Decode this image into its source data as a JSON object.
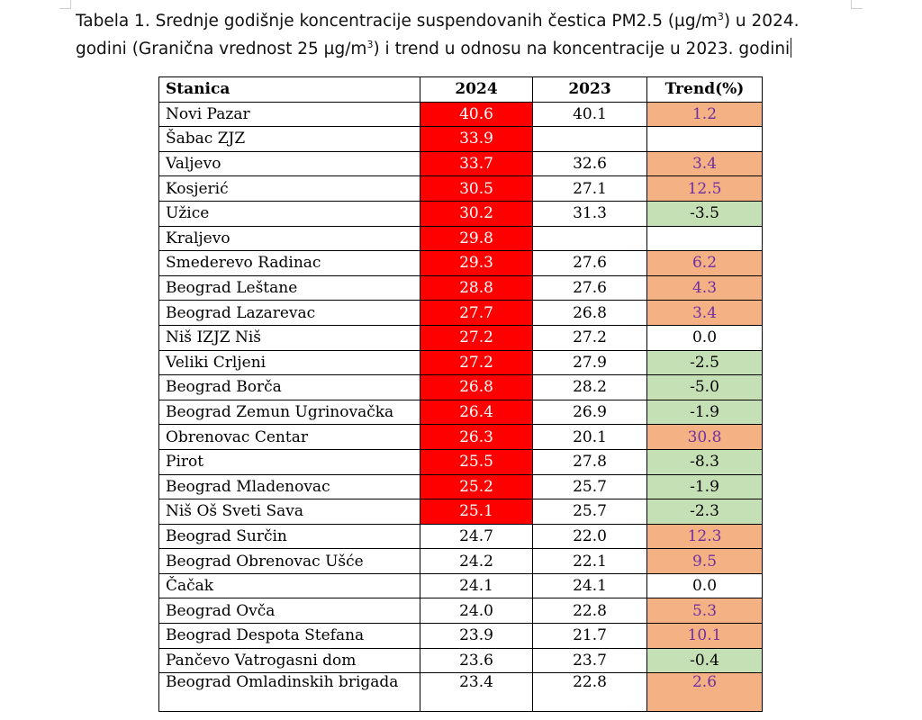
{
  "caption": {
    "line1_a": "Tabela 1. Srednje godišnje koncentracije suspendovanih čestica PM2.5 (µg/m",
    "line1_sup": "3",
    "line1_b": ") u 2024.",
    "line2_a": "godini (Granična vrednost 25 µg/m",
    "line2_sup": "3",
    "line2_b": ") i trend u odnosu na koncentracije u 2023. godini"
  },
  "table": {
    "headers": [
      "Stanica",
      "2024",
      "2023",
      "Trend(%)"
    ],
    "limit_value": 25,
    "colors": {
      "exceed_bg": "#ff0000",
      "exceed_text": "#ffffff",
      "trend_up_bg": "#f4b183",
      "trend_up_text": "#7030a0",
      "trend_down_bg": "#c5e0b4"
    },
    "rows": [
      {
        "station": "Novi Pazar",
        "v2024": "40.6",
        "v2023": "40.1",
        "trend": "1.2"
      },
      {
        "station": "Šabac ZJZ",
        "v2024": "33.9",
        "v2023": "",
        "trend": ""
      },
      {
        "station": "Valjevo",
        "v2024": "33.7",
        "v2023": "32.6",
        "trend": "3.4"
      },
      {
        "station": "Kosjerić",
        "v2024": "30.5",
        "v2023": "27.1",
        "trend": "12.5"
      },
      {
        "station": "Užice",
        "v2024": "30.2",
        "v2023": "31.3",
        "trend": "-3.5"
      },
      {
        "station": "Kraljevo",
        "v2024": "29.8",
        "v2023": "",
        "trend": ""
      },
      {
        "station": "Smederevo Radinac",
        "v2024": "29.3",
        "v2023": "27.6",
        "trend": "6.2"
      },
      {
        "station": "Beograd Leštane",
        "v2024": "28.8",
        "v2023": "27.6",
        "trend": "4.3"
      },
      {
        "station": "Beograd Lazarevac",
        "v2024": "27.7",
        "v2023": "26.8",
        "trend": "3.4"
      },
      {
        "station": "Niš IZJZ Niš",
        "v2024": "27.2",
        "v2023": "27.2",
        "trend": "0.0"
      },
      {
        "station": "Veliki Crljeni",
        "v2024": "27.2",
        "v2023": "27.9",
        "trend": "-2.5"
      },
      {
        "station": "Beograd Borča",
        "v2024": "26.8",
        "v2023": "28.2",
        "trend": "-5.0"
      },
      {
        "station": "Beograd Zemun Ugrinovačka",
        "v2024": "26.4",
        "v2023": "26.9",
        "trend": "-1.9"
      },
      {
        "station": "Obrenovac Centar",
        "v2024": "26.3",
        "v2023": "20.1",
        "trend": "30.8"
      },
      {
        "station": "Pirot",
        "v2024": "25.5",
        "v2023": "27.8",
        "trend": "-8.3"
      },
      {
        "station": "Beograd Mladenovac",
        "v2024": "25.2",
        "v2023": "25.7",
        "trend": "-1.9"
      },
      {
        "station": "Niš Oš Sveti Sava",
        "v2024": "25.1",
        "v2023": "25.7",
        "trend": "-2.3"
      },
      {
        "station": "Beograd Surčin",
        "v2024": "24.7",
        "v2023": "22.0",
        "trend": "12.3"
      },
      {
        "station": "Beograd Obrenovac Ušće",
        "v2024": "24.2",
        "v2023": "22.1",
        "trend": "9.5"
      },
      {
        "station": "Čačak",
        "v2024": "24.1",
        "v2023": "24.1",
        "trend": "0.0"
      },
      {
        "station": "Beograd Ovča",
        "v2024": "24.0",
        "v2023": "22.8",
        "trend": "5.3"
      },
      {
        "station": "Beograd Despota Stefana",
        "v2024": "23.9",
        "v2023": "21.7",
        "trend": "10.1"
      },
      {
        "station": "Pančevo Vatrogasni dom",
        "v2024": "23.6",
        "v2023": "23.7",
        "trend": "-0.4"
      },
      {
        "station": "Beograd Omladinskih brigada",
        "v2024": "23.4",
        "v2023": "22.8",
        "trend": "2.6"
      }
    ]
  }
}
